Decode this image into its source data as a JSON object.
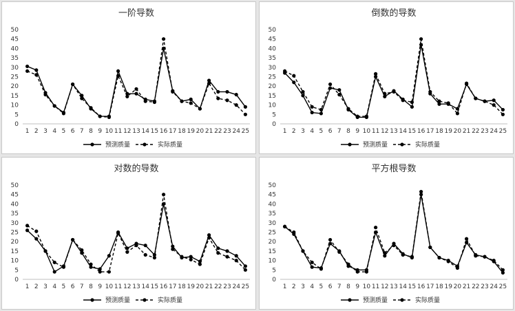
{
  "chart_data": [
    {
      "type": "line",
      "title": "一阶导数",
      "categories": [
        "1",
        "2",
        "3",
        "4",
        "5",
        "6",
        "7",
        "8",
        "9",
        "10",
        "11",
        "12",
        "13",
        "14",
        "15",
        "16",
        "17",
        "18",
        "19",
        "20",
        "21",
        "22",
        "23",
        "24",
        "25"
      ],
      "ylim": [
        0,
        50
      ],
      "yticks": [
        "0",
        "5",
        "10",
        "15",
        "20",
        "25",
        "30",
        "35",
        "40",
        "45",
        "50"
      ],
      "grid": false,
      "legend": "bottom",
      "series": [
        {
          "name": "预测质量",
          "style": "solid",
          "values": [
            30.5,
            28.5,
            16.5,
            9.5,
            6,
            21,
            15,
            8,
            4,
            4,
            28,
            16,
            16,
            13,
            12,
            40,
            17.5,
            12,
            13,
            8,
            23,
            17,
            17,
            15.5,
            9
          ]
        },
        {
          "name": "实际质量",
          "style": "dashed",
          "values": [
            28,
            26,
            15.5,
            9.5,
            5.5,
            21,
            13.5,
            8.5,
            4,
            3.5,
            25.5,
            14.5,
            18.5,
            12,
            11.5,
            45,
            17,
            12,
            11,
            8,
            21.5,
            13.5,
            12.5,
            10,
            5
          ]
        }
      ]
    },
    {
      "type": "line",
      "title": "倒数的导数",
      "categories": [
        "1",
        "2",
        "3",
        "4",
        "5",
        "6",
        "7",
        "8",
        "9",
        "10",
        "11",
        "12",
        "13",
        "14",
        "15",
        "16",
        "17",
        "18",
        "19",
        "20",
        "21",
        "22",
        "23",
        "24",
        "25"
      ],
      "ylim": [
        0,
        50
      ],
      "yticks": [
        "0",
        "5",
        "10",
        "15",
        "20",
        "25",
        "30",
        "35",
        "40",
        "45",
        "50"
      ],
      "grid": false,
      "legend": "bottom",
      "series": [
        {
          "name": "预测质量",
          "style": "solid",
          "values": [
            27,
            22,
            15,
            6,
            5.5,
            19,
            18,
            7.5,
            3.5,
            3.5,
            25,
            14.5,
            17.5,
            13,
            9,
            42,
            16,
            10.5,
            10.5,
            8,
            21,
            13.5,
            12,
            12.5,
            7.5
          ]
        },
        {
          "name": "实际质量",
          "style": "dashed",
          "values": [
            28,
            25.5,
            17,
            9,
            7.5,
            21,
            15.5,
            8,
            4,
            4,
            26.5,
            16,
            17,
            12.5,
            11.5,
            45,
            17,
            12,
            11,
            5.5,
            21.5,
            13.5,
            12,
            10,
            5
          ]
        }
      ]
    },
    {
      "type": "line",
      "title": "对数的导数",
      "categories": [
        "1",
        "2",
        "3",
        "4",
        "5",
        "6",
        "7",
        "8",
        "9",
        "10",
        "11",
        "12",
        "13",
        "14",
        "15",
        "16",
        "17",
        "18",
        "19",
        "20",
        "21",
        "22",
        "23",
        "24",
        "25"
      ],
      "ylim": [
        0,
        50
      ],
      "yticks": [
        "0",
        "5",
        "10",
        "15",
        "20",
        "25",
        "30",
        "35",
        "40",
        "45",
        "50"
      ],
      "grid": false,
      "legend": "bottom",
      "series": [
        {
          "name": "预测质量",
          "style": "solid",
          "values": [
            26,
            21.5,
            15,
            4,
            7,
            21,
            14,
            6.5,
            5.5,
            12.5,
            25,
            16.5,
            19,
            18,
            13,
            40,
            17.5,
            11.5,
            12,
            9.5,
            23.5,
            16.5,
            15,
            12.5,
            7
          ]
        },
        {
          "name": "实际质量",
          "style": "dashed",
          "values": [
            28.5,
            25.5,
            15,
            9,
            6.5,
            21,
            15.5,
            8,
            4,
            4,
            24.5,
            14.5,
            18,
            13,
            11.5,
            45,
            16,
            12,
            10.5,
            8,
            22,
            14,
            12,
            10,
            5
          ]
        }
      ]
    },
    {
      "type": "line",
      "title": "平方根导数",
      "categories": [
        "1",
        "2",
        "3",
        "4",
        "5",
        "6",
        "7",
        "8",
        "9",
        "10",
        "11",
        "12",
        "13",
        "14",
        "15",
        "16",
        "17",
        "18",
        "19",
        "20",
        "21",
        "22",
        "23",
        "24",
        "25"
      ],
      "ylim": [
        0,
        50
      ],
      "yticks": [
        "0",
        "5",
        "10",
        "15",
        "20",
        "25",
        "30",
        "35",
        "40",
        "45",
        "50"
      ],
      "grid": false,
      "legend": "bottom",
      "series": [
        {
          "name": "预测质量",
          "style": "solid",
          "values": [
            28,
            24,
            15,
            6.5,
            6,
            19,
            15,
            7,
            5,
            5,
            25,
            12.5,
            19,
            13.5,
            11.5,
            45,
            17,
            11.5,
            10,
            7,
            19.5,
            13,
            12,
            9.5,
            3.5
          ]
        },
        {
          "name": "实际质量",
          "style": "dashed",
          "values": [
            28,
            25,
            15,
            9,
            5.5,
            21,
            14.5,
            8,
            4,
            4,
            27.5,
            14,
            18,
            13,
            12,
            46.5,
            17,
            11.5,
            9.5,
            6,
            21.5,
            12.5,
            12,
            10,
            5
          ]
        }
      ]
    }
  ],
  "colors": {
    "line": "#000000",
    "axis": "#333333",
    "panel": "#ffffff",
    "background": "#e6e6e6"
  }
}
